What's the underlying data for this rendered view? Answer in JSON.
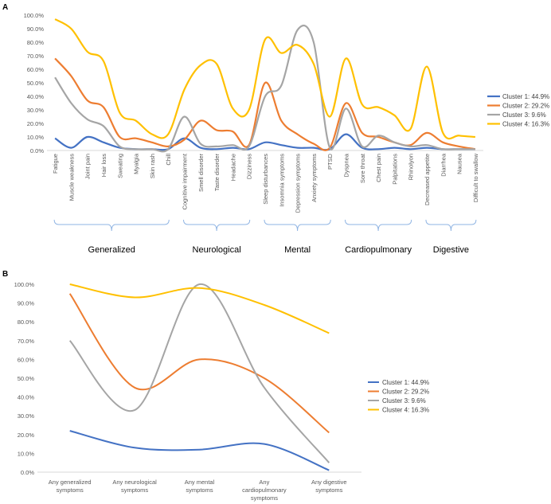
{
  "panels": {
    "a": "A",
    "b": "B"
  },
  "chart_data": [
    {
      "type": "line",
      "panel": "A",
      "ylim": [
        0,
        100
      ],
      "yticks": [
        "0.0%",
        "10.0%",
        "20.0%",
        "30.0%",
        "40.0%",
        "50.0%",
        "60.0%",
        "70.0%",
        "80.0%",
        "90.0%",
        "100.0%"
      ],
      "categories": [
        "Fatigue",
        "Muscle weakness",
        "Joint pain",
        "Hair loss",
        "Sweating",
        "Myalgia",
        "Skin rash",
        "Chill",
        "Cognitive impairment",
        "Smell disorder",
        "Taste disorder",
        "Headache",
        "Dizziness",
        "Sleep disturbances",
        "Insomnia symptoms",
        "Depression symptoms",
        "Anxiety symptoms",
        "PTSD",
        "Dyspnea",
        "Sore throat",
        "Chest pain",
        "Palpitations",
        "Rhinolyon",
        "Decreased appetite",
        "Diarrhea",
        "Nausea",
        "Difficult to swallow"
      ],
      "groups": [
        {
          "label": "Generalized",
          "start": 0,
          "end": 7
        },
        {
          "label": "Neurological",
          "start": 8,
          "end": 12
        },
        {
          "label": "Mental",
          "start": 13,
          "end": 17
        },
        {
          "label": "Cardiopulmonary",
          "start": 18,
          "end": 22
        },
        {
          "label": "Digestive",
          "start": 23,
          "end": 26
        }
      ],
      "series": [
        {
          "name": "Cluster 1: 44.9%",
          "color": "#4472C4",
          "values": [
            9,
            2,
            10,
            6,
            2,
            1,
            1,
            1,
            9,
            2,
            1,
            2,
            1,
            6,
            4,
            2,
            2,
            1,
            12,
            2,
            1,
            2,
            1,
            2,
            1,
            1,
            1
          ]
        },
        {
          "name": "Cluster 2: 29.2%",
          "color": "#ED7D31",
          "values": [
            68,
            55,
            37,
            32,
            10,
            9,
            6,
            3,
            8,
            22,
            15,
            14,
            4,
            50,
            22,
            12,
            5,
            2,
            35,
            13,
            10,
            6,
            4,
            13,
            6,
            3,
            1
          ]
        },
        {
          "name": "Cluster 3: 9.6%",
          "color": "#A5A5A5",
          "values": [
            54,
            35,
            23,
            18,
            3,
            1,
            1,
            1,
            25,
            5,
            3,
            4,
            3,
            40,
            48,
            89,
            80,
            2,
            31,
            3,
            11,
            6,
            3,
            4,
            1,
            1,
            1
          ]
        },
        {
          "name": "Cluster 4: 16.3%",
          "color": "#FFC000",
          "values": [
            97,
            90,
            73,
            66,
            28,
            22,
            12,
            12,
            45,
            63,
            64,
            31,
            30,
            82,
            72,
            78,
            64,
            25,
            68,
            34,
            32,
            26,
            16,
            62,
            13,
            11,
            10
          ]
        }
      ]
    },
    {
      "type": "line",
      "panel": "B",
      "ylim": [
        0,
        100
      ],
      "yticks": [
        "0.0%",
        "10.0%",
        "20.0%",
        "30.0%",
        "40.0%",
        "50.0%",
        "60.0%",
        "70.0%",
        "80.0%",
        "90.0%",
        "100.0%"
      ],
      "categories": [
        "Any generalized symptoms",
        "Any neurological symptoms",
        "Any mental symptoms",
        "Any cardiopulmonary symptoms",
        "Any digestive symptoms"
      ],
      "category_lines": [
        [
          "Any generalized",
          "symptoms"
        ],
        [
          "Any neurological",
          "symptoms"
        ],
        [
          "Any mental",
          "symptoms"
        ],
        [
          "Any",
          "cardiopulmonary",
          "symptoms"
        ],
        [
          "Any digestive",
          "symptoms"
        ]
      ],
      "series": [
        {
          "name": "Cluster 1: 44.9%",
          "color": "#4472C4",
          "values": [
            22,
            13,
            12,
            15,
            1
          ]
        },
        {
          "name": "Cluster 2: 29.2%",
          "color": "#ED7D31",
          "values": [
            95,
            45,
            60,
            50,
            21
          ]
        },
        {
          "name": "Cluster 3: 9.6%",
          "color": "#A5A5A5",
          "values": [
            70,
            33,
            100,
            45,
            5
          ]
        },
        {
          "name": "Cluster 4: 16.3%",
          "color": "#FFC000",
          "values": [
            100,
            93,
            98,
            89,
            74
          ]
        }
      ]
    }
  ]
}
